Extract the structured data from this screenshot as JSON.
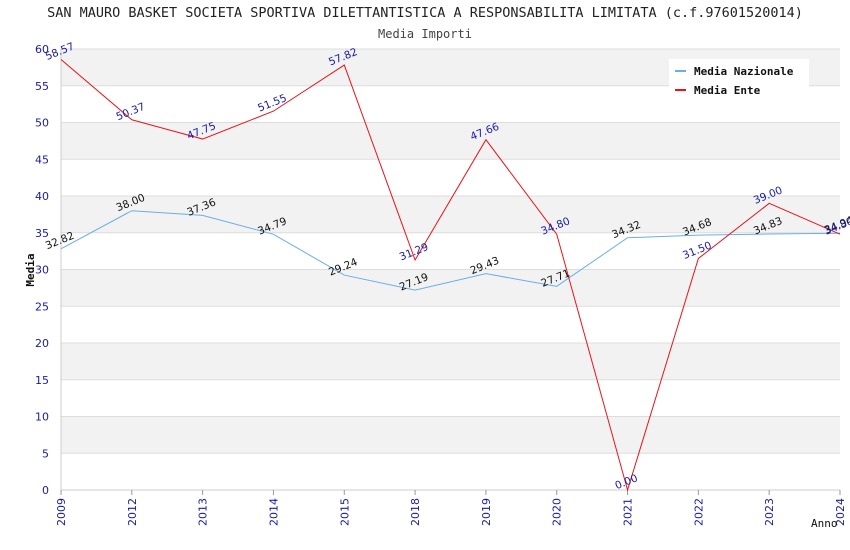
{
  "chart_data": {
    "type": "line",
    "title": "SAN MAURO BASKET SOCIETA SPORTIVA DILETTANTISTICA A RESPONSABILITA LIMITATA (c.f.97601520014)",
    "subtitle": "Media Importi",
    "xlabel": "Anno",
    "ylabel": "Media",
    "ylim": [
      0,
      60
    ],
    "yticks": [
      "0",
      "5",
      "10",
      "15",
      "20",
      "25",
      "30",
      "35",
      "40",
      "45",
      "50",
      "55",
      "60"
    ],
    "categories": [
      "2009",
      "2012",
      "2013",
      "2014",
      "2015",
      "2018",
      "2019",
      "2020",
      "2021",
      "2022",
      "2023",
      "2024"
    ],
    "series": [
      {
        "name": "Media Nazionale",
        "color": "#6aaee8",
        "values": [
          32.82,
          38.0,
          37.36,
          34.79,
          29.24,
          27.19,
          29.43,
          27.71,
          34.32,
          34.68,
          34.83,
          34.94
        ],
        "labels": [
          "32.82",
          "38.00",
          "37.36",
          "34.79",
          "29.24",
          "27.19",
          "29.43",
          "27.71",
          "34.32",
          "34.68",
          "34.83",
          "34.94"
        ]
      },
      {
        "name": "Media Ente",
        "color": "#e8141c",
        "values": [
          58.57,
          50.37,
          47.75,
          51.55,
          57.82,
          31.29,
          47.66,
          34.8,
          0.0,
          31.5,
          39.0,
          34.8
        ],
        "labels": [
          "58.57",
          "50.37",
          "47.75",
          "51.55",
          "57.82",
          "31.29",
          "47.66",
          "34.80",
          "0.00",
          "31.50",
          "39.00",
          "34.80"
        ]
      }
    ],
    "legend": "top-right",
    "grid": true
  }
}
